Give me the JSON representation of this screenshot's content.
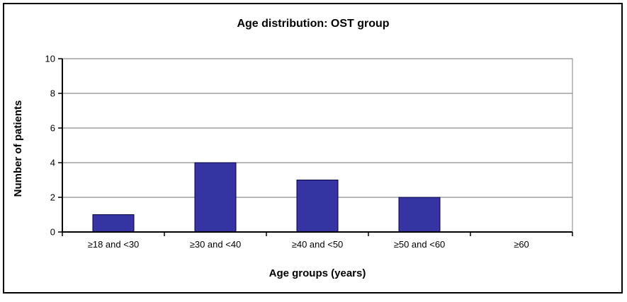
{
  "chart_data": {
    "type": "bar",
    "title": "Age distribution: OST group",
    "xlabel": "Age groups (years)",
    "ylabel": "Number of patients",
    "categories": [
      "≥18 and <30",
      "≥30 and <40",
      "≥40 and <50",
      "≥50 and <60",
      "≥60"
    ],
    "values": [
      1,
      4,
      3,
      2,
      0
    ],
    "ylim": [
      0,
      10
    ],
    "y_ticks": [
      0,
      2,
      4,
      6,
      8,
      10
    ],
    "grid": true,
    "legend": "none",
    "colors": {
      "bar_fill": "#3434A3",
      "bar_border": "#00003C",
      "gridline": "#707070",
      "axis": "#000000",
      "plot_border": "#808080",
      "frame_border": "#000000",
      "background": "#FFFFFF"
    }
  }
}
